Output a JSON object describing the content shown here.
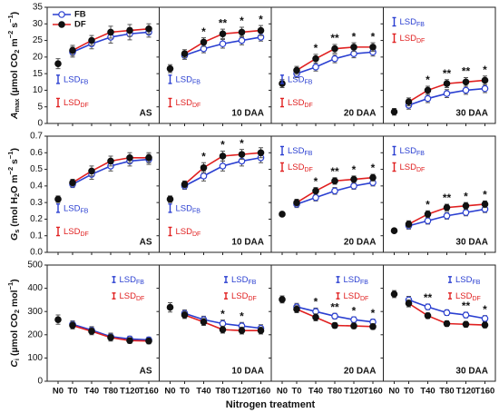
{
  "xlabel": "Nitrogen treatment",
  "chart_data": [
    {
      "type": "line",
      "ylabel": [
        {
          "text": "A",
          "kind": "i"
        },
        {
          "text": "max",
          "kind": "sub"
        },
        {
          "text": " (µmol CO",
          "kind": "n"
        },
        {
          "text": "2",
          "kind": "sub"
        },
        {
          "text": " m",
          "kind": "n"
        },
        {
          "text": "−2",
          "kind": "sup"
        },
        {
          "text": " s",
          "kind": "n"
        },
        {
          "text": "−1",
          "kind": "sup"
        },
        {
          "text": ")",
          "kind": "n"
        }
      ],
      "title": "AS",
      "ylim": [
        0,
        35
      ],
      "yticks": [
        0,
        5,
        10,
        15,
        20,
        25,
        30,
        35
      ],
      "legend": "upper left",
      "series": [
        {
          "name": "FB",
          "color": "#2a3fd1",
          "marker": "open",
          "values": [
            null,
            21.5,
            24,
            26,
            27,
            27.5
          ],
          "errors": [
            null,
            1.5,
            1.5,
            1.8,
            1.8,
            1.5
          ]
        },
        {
          "name": "DF",
          "color": "#e02020",
          "marker": "filled",
          "values": [
            18,
            22,
            25,
            27.5,
            28,
            28.5
          ],
          "errors": [
            1.5,
            1.5,
            1.5,
            1.8,
            1.8,
            1.5
          ]
        }
      ],
      "annotations": [
        null,
        null,
        null,
        null,
        null,
        null
      ],
      "lsd_label": "LSD",
      "lsd": [
        2.5,
        2.5
      ],
      "lsd_corner": "lower left"
    },
    {
      "type": "line",
      "title": "10 DAA",
      "ylim": [
        0,
        35
      ],
      "yticks": [
        0,
        5,
        10,
        15,
        20,
        25,
        30,
        35
      ],
      "series": [
        {
          "name": "FB",
          "color": "#2a3fd1",
          "marker": "open",
          "values": [
            null,
            20.5,
            22.5,
            24,
            25,
            26
          ],
          "errors": [
            null,
            1.2,
            1.2,
            1.3,
            1.3,
            1.2
          ]
        },
        {
          "name": "DF",
          "color": "#e02020",
          "marker": "filled",
          "values": [
            16.5,
            21,
            24.5,
            27,
            27.5,
            28
          ],
          "errors": [
            1.2,
            1.2,
            1.3,
            1.4,
            1.5,
            1.5
          ]
        }
      ],
      "annotations": [
        null,
        null,
        "*",
        "**",
        "*",
        "*"
      ],
      "lsd_label": "LSD",
      "lsd": [
        2.5,
        2.5
      ],
      "lsd_corner": "lower left"
    },
    {
      "type": "line",
      "title": "20 DAA",
      "ylim": [
        0,
        35
      ],
      "yticks": [
        0,
        5,
        10,
        15,
        20,
        25,
        30,
        35
      ],
      "series": [
        {
          "name": "FB",
          "color": "#2a3fd1",
          "marker": "open",
          "values": [
            null,
            15,
            17,
            19.5,
            21,
            21.5
          ],
          "errors": [
            null,
            1.2,
            1.2,
            1.2,
            1.2,
            1.2
          ]
        },
        {
          "name": "DF",
          "color": "#e02020",
          "marker": "filled",
          "values": [
            12,
            16,
            19.5,
            22.5,
            23,
            23
          ],
          "errors": [
            1.2,
            1.2,
            1.3,
            1.3,
            1.3,
            1.3
          ]
        }
      ],
      "annotations": [
        null,
        null,
        "*",
        "**",
        "*",
        "*"
      ],
      "lsd_label": "LSD",
      "lsd": [
        2.5,
        2.5
      ],
      "lsd_corner": "lower left"
    },
    {
      "type": "line",
      "title": "30 DAA",
      "ylim": [
        0,
        35
      ],
      "yticks": [
        0,
        5,
        10,
        15,
        20,
        25,
        30,
        35
      ],
      "series": [
        {
          "name": "FB",
          "color": "#2a3fd1",
          "marker": "open",
          "values": [
            null,
            5.5,
            7.5,
            9,
            10,
            10.5
          ],
          "errors": [
            null,
            1.2,
            1.2,
            1.2,
            1.2,
            1.2
          ]
        },
        {
          "name": "DF",
          "color": "#e02020",
          "marker": "filled",
          "values": [
            3.5,
            6.5,
            10,
            12,
            12.5,
            13
          ],
          "errors": [
            1,
            1.2,
            1.2,
            1.2,
            1.3,
            1.3
          ]
        }
      ],
      "annotations": [
        null,
        null,
        "*",
        "**",
        "**",
        "*"
      ],
      "lsd_label": "LSD",
      "lsd": [
        2.5,
        2.5
      ],
      "lsd_corner": "upper left"
    },
    {
      "type": "line",
      "ylabel": [
        {
          "text": "G",
          "kind": "i"
        },
        {
          "text": "s",
          "kind": "sub"
        },
        {
          "text": " (mol H",
          "kind": "n"
        },
        {
          "text": "2",
          "kind": "sub"
        },
        {
          "text": "O m",
          "kind": "n"
        },
        {
          "text": "−2",
          "kind": "sup"
        },
        {
          "text": " s",
          "kind": "n"
        },
        {
          "text": "−1",
          "kind": "sup"
        },
        {
          "text": ")",
          "kind": "n"
        }
      ],
      "title": "AS",
      "ylim": [
        0,
        0.7
      ],
      "yticks": [
        {
          "value": 0,
          "label": "0.0"
        },
        0.1,
        0.2,
        0.3,
        0.4,
        0.5,
        0.6,
        0.7
      ],
      "series": [
        {
          "name": "FB",
          "color": "#2a3fd1",
          "marker": "open",
          "values": [
            null,
            0.41,
            0.47,
            0.52,
            0.55,
            0.56
          ],
          "errors": [
            null,
            0.02,
            0.03,
            0.03,
            0.03,
            0.03
          ]
        },
        {
          "name": "DF",
          "color": "#e02020",
          "marker": "filled",
          "values": [
            0.32,
            0.42,
            0.49,
            0.55,
            0.57,
            0.57
          ],
          "errors": [
            0.02,
            0.02,
            0.03,
            0.03,
            0.03,
            0.03
          ]
        }
      ],
      "annotations": [
        null,
        null,
        null,
        null,
        null,
        null
      ],
      "lsd_label": "LSD",
      "lsd": [
        0.05,
        0.05
      ],
      "lsd_corner": "lower left"
    },
    {
      "type": "line",
      "title": "10 DAA",
      "ylim": [
        0,
        0.7
      ],
      "yticks": [
        0,
        0.1,
        0.2,
        0.3,
        0.4,
        0.5,
        0.6,
        0.7
      ],
      "series": [
        {
          "name": "FB",
          "color": "#2a3fd1",
          "marker": "open",
          "values": [
            null,
            0.4,
            0.46,
            0.52,
            0.55,
            0.57
          ],
          "errors": [
            null,
            0.02,
            0.03,
            0.03,
            0.03,
            0.03
          ]
        },
        {
          "name": "DF",
          "color": "#e02020",
          "marker": "filled",
          "values": [
            0.32,
            0.41,
            0.51,
            0.58,
            0.59,
            0.6
          ],
          "errors": [
            0.02,
            0.02,
            0.03,
            0.03,
            0.03,
            0.03
          ]
        }
      ],
      "annotations": [
        null,
        null,
        "*",
        "*",
        "*",
        null
      ],
      "lsd_label": "LSD",
      "lsd": [
        0.05,
        0.05
      ],
      "lsd_corner": "lower left"
    },
    {
      "type": "line",
      "title": "20 DAA",
      "ylim": [
        0,
        0.7
      ],
      "yticks": [
        0,
        0.1,
        0.2,
        0.3,
        0.4,
        0.5,
        0.6,
        0.7
      ],
      "series": [
        {
          "name": "FB",
          "color": "#2a3fd1",
          "marker": "open",
          "values": [
            null,
            0.29,
            0.33,
            0.37,
            0.4,
            0.42
          ],
          "errors": [
            null,
            0.02,
            0.02,
            0.02,
            0.02,
            0.02
          ]
        },
        {
          "name": "DF",
          "color": "#e02020",
          "marker": "filled",
          "values": [
            0.23,
            0.3,
            0.37,
            0.43,
            0.44,
            0.45
          ],
          "errors": [
            0.01,
            0.02,
            0.02,
            0.02,
            0.02,
            0.02
          ]
        }
      ],
      "annotations": [
        null,
        null,
        "*",
        "**",
        "*",
        "*"
      ],
      "lsd_label": "LSD",
      "lsd": [
        0.05,
        0.05
      ],
      "lsd_corner": "upper left"
    },
    {
      "type": "line",
      "title": "30 DAA",
      "ylim": [
        0,
        0.7
      ],
      "yticks": [
        0,
        0.1,
        0.2,
        0.3,
        0.4,
        0.5,
        0.6,
        0.7
      ],
      "series": [
        {
          "name": "FB",
          "color": "#2a3fd1",
          "marker": "open",
          "values": [
            null,
            0.16,
            0.19,
            0.22,
            0.24,
            0.26
          ],
          "errors": [
            null,
            0.02,
            0.02,
            0.02,
            0.02,
            0.02
          ]
        },
        {
          "name": "DF",
          "color": "#e02020",
          "marker": "filled",
          "values": [
            0.13,
            0.17,
            0.23,
            0.27,
            0.28,
            0.29
          ],
          "errors": [
            0.01,
            0.02,
            0.02,
            0.02,
            0.02,
            0.02
          ]
        }
      ],
      "annotations": [
        null,
        null,
        "*",
        "**",
        "*",
        "*"
      ],
      "lsd_label": "LSD",
      "lsd": [
        0.05,
        0.05
      ],
      "lsd_corner": "upper left"
    },
    {
      "type": "line",
      "ylabel": [
        {
          "text": "C",
          "kind": "i"
        },
        {
          "text": "i",
          "kind": "sub"
        },
        {
          "text": " (µmol CO",
          "kind": "n"
        },
        {
          "text": "2",
          "kind": "sub"
        },
        {
          "text": " mol",
          "kind": "n"
        },
        {
          "text": "−1",
          "kind": "sup"
        },
        {
          "text": ")",
          "kind": "n"
        }
      ],
      "title": "AS",
      "ylim": [
        0,
        500
      ],
      "yticks": [
        0,
        100,
        200,
        300,
        400,
        500
      ],
      "categories": [
        "N0",
        "T0",
        "T40",
        "T80",
        "T120",
        "T160"
      ],
      "series": [
        {
          "name": "FB",
          "color": "#2a3fd1",
          "marker": "open",
          "values": [
            null,
            245,
            220,
            192,
            182,
            178
          ],
          "errors": [
            null,
            15,
            15,
            15,
            12,
            12
          ]
        },
        {
          "name": "DF",
          "color": "#e02020",
          "marker": "filled",
          "values": [
            265,
            240,
            215,
            188,
            175,
            173
          ],
          "errors": [
            20,
            15,
            15,
            15,
            12,
            12
          ]
        }
      ],
      "annotations": [
        null,
        null,
        null,
        null,
        null,
        null
      ],
      "lsd_label": "LSD",
      "lsd": [
        25,
        25
      ],
      "lsd_corner": "upper right"
    },
    {
      "type": "line",
      "title": "10 DAA",
      "ylim": [
        0,
        500
      ],
      "yticks": [
        0,
        100,
        200,
        300,
        400,
        500
      ],
      "categories": [
        "N0",
        "T0",
        "T40",
        "T80",
        "T120",
        "T160"
      ],
      "series": [
        {
          "name": "FB",
          "color": "#2a3fd1",
          "marker": "open",
          "values": [
            null,
            292,
            265,
            248,
            238,
            228
          ],
          "errors": [
            null,
            15,
            15,
            15,
            15,
            15
          ]
        },
        {
          "name": "DF",
          "color": "#e02020",
          "marker": "filled",
          "values": [
            318,
            285,
            255,
            222,
            218,
            218
          ],
          "errors": [
            20,
            15,
            15,
            15,
            15,
            15
          ]
        }
      ],
      "annotations": [
        null,
        null,
        null,
        "*",
        "*",
        null
      ],
      "lsd_label": "LSD",
      "lsd": [
        25,
        25
      ],
      "lsd_corner": "upper right"
    },
    {
      "type": "line",
      "title": "20 DAA",
      "ylim": [
        0,
        500
      ],
      "yticks": [
        0,
        100,
        200,
        300,
        400,
        500
      ],
      "categories": [
        "N0",
        "T0",
        "T40",
        "T80",
        "T120",
        "T160"
      ],
      "series": [
        {
          "name": "FB",
          "color": "#2a3fd1",
          "marker": "open",
          "values": [
            null,
            320,
            300,
            280,
            265,
            255
          ],
          "errors": [
            null,
            15,
            15,
            12,
            12,
            12
          ]
        },
        {
          "name": "DF",
          "color": "#e02020",
          "marker": "filled",
          "values": [
            352,
            310,
            275,
            240,
            238,
            235
          ],
          "errors": [
            15,
            15,
            15,
            12,
            12,
            12
          ]
        }
      ],
      "annotations": [
        null,
        null,
        "*",
        "**",
        "*",
        "*"
      ],
      "lsd_label": "LSD",
      "lsd": [
        25,
        25
      ],
      "lsd_corner": "upper right"
    },
    {
      "type": "line",
      "title": "30 DAA",
      "ylim": [
        0,
        500
      ],
      "yticks": [
        0,
        100,
        200,
        300,
        400,
        500
      ],
      "categories": [
        "N0",
        "T0",
        "T40",
        "T80",
        "T120",
        "T160"
      ],
      "series": [
        {
          "name": "FB",
          "color": "#2a3fd1",
          "marker": "open",
          "values": [
            null,
            350,
            320,
            295,
            285,
            270
          ],
          "errors": [
            null,
            15,
            12,
            12,
            12,
            12
          ]
        },
        {
          "name": "DF",
          "color": "#e02020",
          "marker": "filled",
          "values": [
            375,
            335,
            282,
            248,
            245,
            242
          ],
          "errors": [
            15,
            15,
            12,
            12,
            12,
            12
          ]
        }
      ],
      "annotations": [
        null,
        null,
        "**",
        null,
        "**",
        "*"
      ],
      "lsd_label": "LSD",
      "lsd": [
        25,
        25
      ],
      "lsd_corner": "upper right"
    }
  ]
}
